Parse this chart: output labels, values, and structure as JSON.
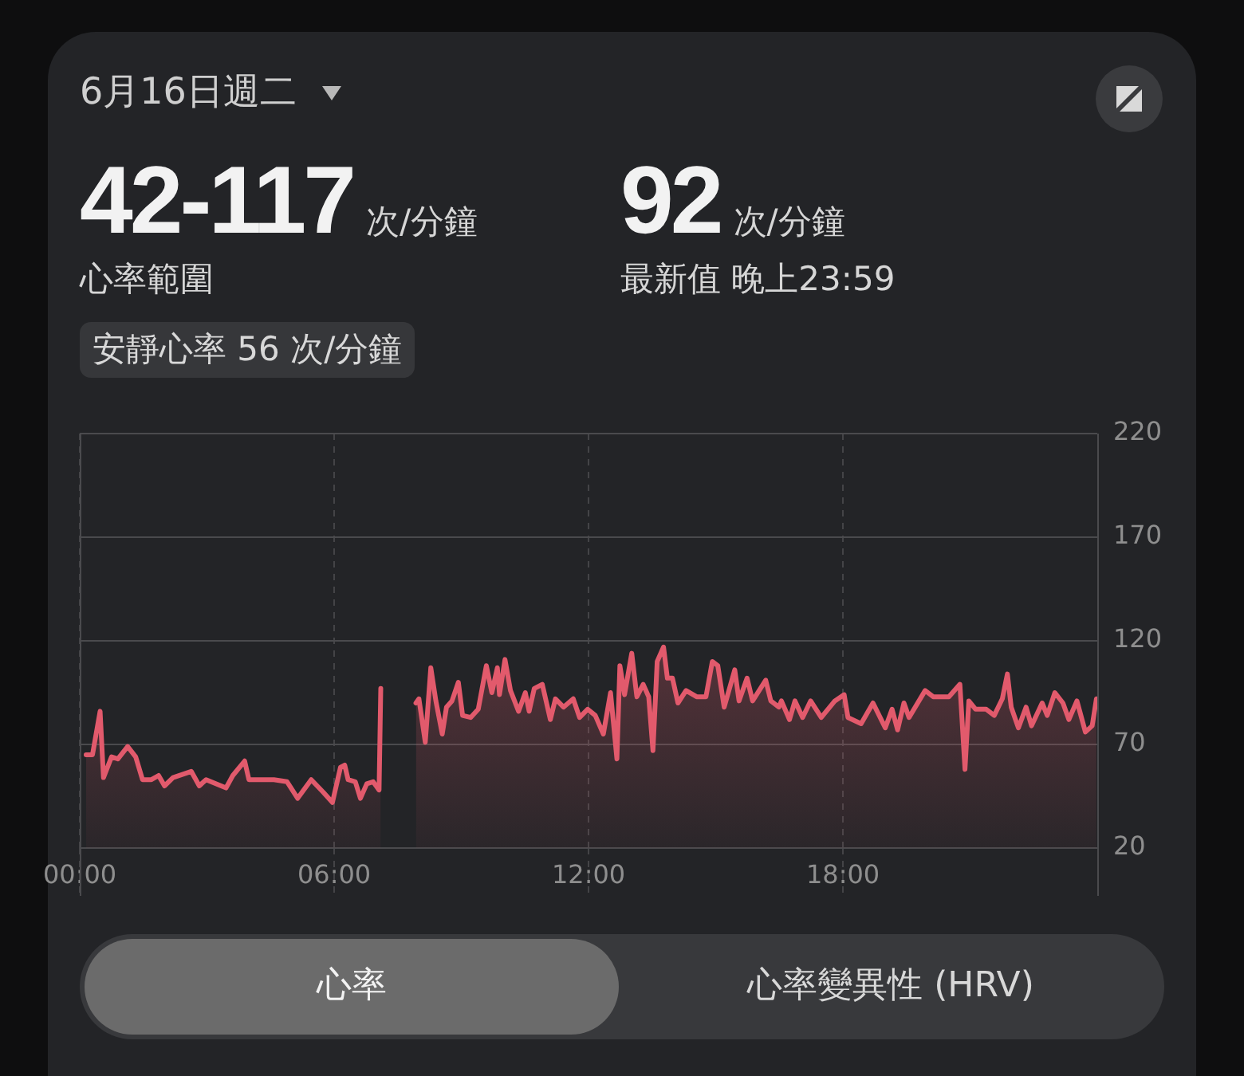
{
  "chart_data": {
    "type": "area",
    "title": "6月16日週二",
    "annotations": [
      "42-117",
      "次/分鐘",
      "心率範圍",
      "92",
      "次/分鐘",
      "最新值 晚上23:59",
      "安靜心率 56 次/分鐘",
      "心率",
      "心率變異性 (HRV)"
    ],
    "color": "#e25a6c",
    "x": [
      0.15,
      0.3,
      0.48,
      0.56,
      0.75,
      0.9,
      1.13,
      1.32,
      1.48,
      1.69,
      1.86,
      2.0,
      2.2,
      2.63,
      2.82,
      2.98,
      3.45,
      3.61,
      3.89,
      3.99,
      4.39,
      4.58,
      4.89,
      5.14,
      5.46,
      5.74,
      5.96,
      6.15,
      6.25,
      6.33,
      6.5,
      6.62,
      6.77,
      6.92,
      7.06,
      7.1,
      7.5,
      7.93,
      8.0,
      8.15,
      8.28,
      8.4,
      8.55,
      8.65,
      8.78,
      8.93,
      9.03,
      9.22,
      9.4,
      9.59,
      9.72,
      9.85,
      9.9,
      10.03,
      10.16,
      10.35,
      10.51,
      10.6,
      10.72,
      10.91,
      11.1,
      11.22,
      11.41,
      11.64,
      11.79,
      11.98,
      12.16,
      12.35,
      12.52,
      12.67,
      12.74,
      12.85,
      13.02,
      13.14,
      13.29,
      13.42,
      13.52,
      13.62,
      13.77,
      13.86,
      13.98,
      14.11,
      14.3,
      14.55,
      14.77,
      14.92,
      15.05,
      15.2,
      15.45,
      15.55,
      15.74,
      15.87,
      16.18,
      16.3,
      16.49,
      16.55,
      16.74,
      16.87,
      17.05,
      17.24,
      17.49,
      17.81,
      18.03,
      18.12,
      18.43,
      18.71,
      19.0,
      19.16,
      19.29,
      19.44,
      19.56,
      19.94,
      20.13,
      20.5,
      20.76,
      20.88,
      20.97,
      21.13,
      21.38,
      21.57,
      21.76,
      21.88,
      21.97,
      22.14,
      22.32,
      22.45,
      22.7,
      22.82,
      23.0,
      23.19,
      23.33,
      23.52,
      23.72,
      23.88,
      23.98
    ],
    "values": [
      65,
      65,
      86,
      54,
      64,
      63,
      69,
      64,
      53,
      53,
      55,
      50,
      54,
      57,
      50,
      53,
      49,
      55,
      62,
      53,
      53,
      53,
      52,
      44,
      53,
      47,
      42,
      59,
      60,
      53,
      52,
      44,
      51,
      52,
      48,
      97,
      null,
      90,
      92,
      71,
      107,
      91,
      75,
      88,
      91,
      100,
      84,
      83,
      87,
      108,
      95,
      107,
      94,
      111,
      96,
      86,
      95,
      86,
      97,
      99,
      82,
      92,
      88,
      92,
      83,
      87,
      84,
      75,
      95,
      63,
      108,
      94,
      114,
      93,
      99,
      93,
      67,
      110,
      117,
      102,
      102,
      90,
      96,
      93,
      93,
      110,
      108,
      88,
      106,
      91,
      102,
      91,
      101,
      91,
      88,
      91,
      82,
      91,
      83,
      91,
      83,
      91,
      94,
      83,
      80,
      90,
      78,
      87,
      77,
      90,
      83,
      96,
      93,
      93,
      99,
      58,
      91,
      87,
      87,
      84,
      92,
      104,
      88,
      78,
      88,
      79,
      90,
      84,
      95,
      90,
      82,
      91,
      76,
      79,
      92
    ],
    "xlim": [
      0,
      24
    ],
    "xticks": [
      {
        "value": 0,
        "label": "00:00"
      },
      {
        "value": 6,
        "label": "06:00"
      },
      {
        "value": 12,
        "label": "12:00"
      },
      {
        "value": 18,
        "label": "18:00"
      }
    ],
    "ylim": [
      20,
      220
    ],
    "yticks": [
      20,
      70,
      120,
      170,
      220
    ],
    "grid": true
  }
}
